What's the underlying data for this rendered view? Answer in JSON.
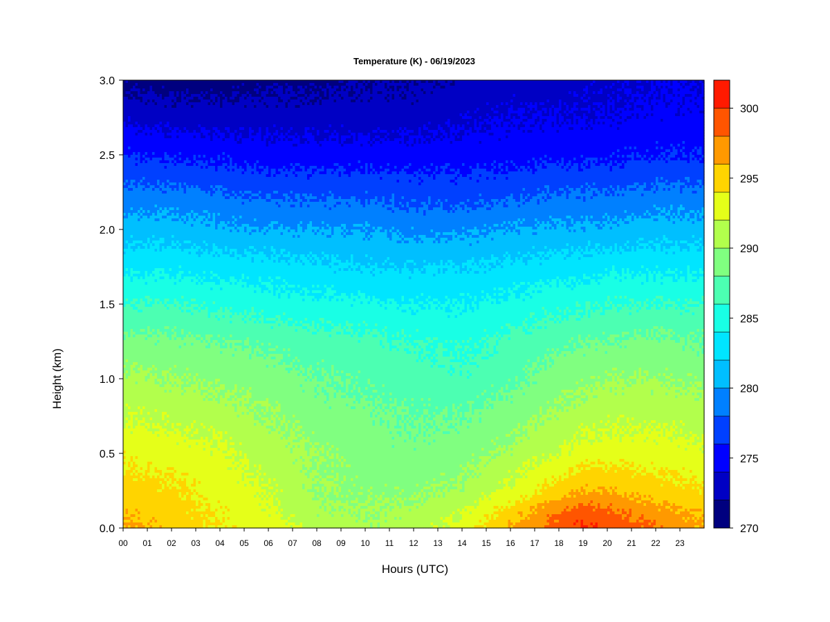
{
  "chart_data": {
    "type": "heatmap",
    "title": "Temperature (K) - 06/19/2023",
    "xlabel": "Hours (UTC)",
    "ylabel": "Height (km)",
    "x_range_hours": [
      0,
      24
    ],
    "y_range_km": [
      0,
      3.0
    ],
    "x_ticks": [
      "00",
      "01",
      "02",
      "03",
      "04",
      "05",
      "06",
      "07",
      "08",
      "09",
      "10",
      "11",
      "12",
      "13",
      "14",
      "15",
      "16",
      "17",
      "18",
      "19",
      "20",
      "21",
      "22",
      "23"
    ],
    "y_ticks": [
      "0.0",
      "0.5",
      "1.0",
      "1.5",
      "2.0",
      "2.5",
      "3.0"
    ],
    "colorbar": {
      "range": [
        270,
        302
      ],
      "ticks": [
        "270",
        "275",
        "280",
        "285",
        "290",
        "295",
        "300"
      ],
      "levels": [
        270,
        272,
        274,
        276,
        278,
        280,
        282,
        284,
        286,
        288,
        290,
        292,
        294,
        296,
        298,
        300,
        302
      ],
      "colors": [
        "#00007f",
        "#0000c4",
        "#0000ff",
        "#0040ff",
        "#0080ff",
        "#00bfff",
        "#00e5ff",
        "#19ffe5",
        "#4cffb2",
        "#80ff80",
        "#b2ff4c",
        "#e5ff19",
        "#ffd400",
        "#ff9900",
        "#ff5500",
        "#ff1a00",
        "#cc0000",
        "#800000"
      ]
    },
    "height_levels_km": [
      0,
      0.1,
      0.25,
      0.5,
      0.75,
      1.0,
      1.25,
      1.5,
      1.75,
      2.0,
      2.25,
      2.5,
      2.75,
      3.0
    ],
    "hours": [
      0,
      2,
      4,
      6,
      8,
      10,
      12,
      14,
      16,
      18,
      19,
      20,
      22,
      24
    ],
    "temperature_k": [
      [
        296.5,
        295.2,
        294.0,
        293.0,
        291.0,
        290.5,
        291.0,
        293.0,
        296.0,
        299.0,
        300.5,
        299.5,
        298.0,
        296.0
      ],
      [
        295.8,
        295.0,
        293.8,
        292.5,
        290.5,
        290.0,
        290.5,
        292.0,
        295.0,
        298.0,
        299.0,
        298.5,
        297.0,
        295.5
      ],
      [
        295.0,
        294.5,
        293.0,
        292.0,
        290.0,
        289.5,
        289.5,
        290.5,
        292.5,
        295.0,
        296.0,
        296.0,
        295.0,
        294.0
      ],
      [
        293.5,
        293.0,
        292.5,
        291.0,
        290.0,
        289.0,
        288.5,
        289.0,
        290.5,
        292.0,
        293.0,
        293.0,
        293.0,
        292.5
      ],
      [
        292.0,
        291.5,
        291.0,
        290.0,
        289.0,
        288.5,
        288.0,
        288.0,
        289.0,
        290.5,
        291.0,
        291.5,
        291.5,
        291.0
      ],
      [
        290.5,
        290.0,
        289.5,
        289.0,
        288.0,
        287.5,
        287.0,
        286.5,
        287.5,
        289.0,
        289.5,
        290.0,
        290.0,
        289.5
      ],
      [
        288.5,
        288.5,
        288.0,
        287.5,
        287.0,
        286.5,
        286.0,
        285.5,
        286.5,
        287.5,
        288.0,
        288.0,
        288.5,
        288.0
      ],
      [
        286.0,
        286.0,
        285.5,
        285.0,
        284.5,
        284.5,
        284.0,
        284.0,
        284.5,
        285.5,
        285.5,
        286.0,
        286.0,
        286.0
      ],
      [
        283.5,
        283.5,
        283.0,
        283.0,
        282.5,
        282.0,
        282.0,
        282.0,
        282.5,
        283.0,
        283.0,
        283.5,
        283.5,
        283.5
      ],
      [
        281.0,
        281.0,
        280.5,
        280.0,
        280.0,
        280.0,
        279.5,
        279.5,
        280.0,
        280.5,
        280.5,
        280.5,
        281.0,
        281.0
      ],
      [
        278.5,
        278.5,
        278.0,
        277.5,
        277.5,
        277.5,
        277.0,
        277.0,
        277.5,
        278.0,
        278.0,
        278.0,
        278.5,
        278.5
      ],
      [
        276.0,
        275.5,
        275.5,
        275.0,
        275.0,
        275.0,
        275.0,
        275.0,
        275.0,
        275.5,
        275.5,
        275.5,
        276.0,
        276.0
      ],
      [
        273.5,
        273.0,
        273.0,
        273.0,
        273.0,
        273.0,
        273.0,
        273.5,
        274.0,
        274.0,
        274.0,
        274.0,
        274.5,
        274.5
      ],
      [
        271.5,
        271.0,
        271.0,
        271.5,
        271.5,
        272.0,
        272.0,
        272.5,
        273.0,
        273.0,
        273.5,
        273.5,
        274.0,
        274.0
      ]
    ]
  }
}
